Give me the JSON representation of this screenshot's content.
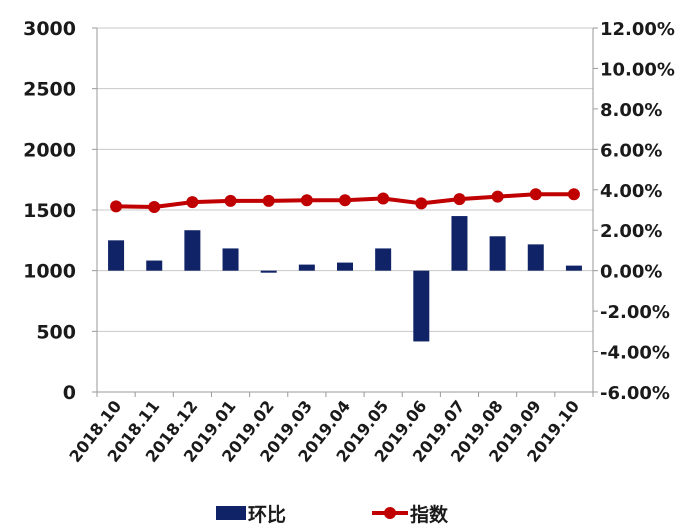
{
  "chart_data": {
    "type": "bar",
    "categories": [
      "2018.10",
      "2018.11",
      "2018.12",
      "2019.01",
      "2019.02",
      "2019.03",
      "2019.04",
      "2019.05",
      "2019.06",
      "2019.07",
      "2019.08",
      "2019.09",
      "2019.10"
    ],
    "series": [
      {
        "name": "环比",
        "type": "bar",
        "axis": "right",
        "unit": "%",
        "color": "#0f2366",
        "values": [
          1.5,
          0.5,
          2.0,
          1.1,
          -0.1,
          0.3,
          0.4,
          1.1,
          -3.5,
          2.7,
          1.7,
          1.3,
          0.25
        ]
      },
      {
        "name": "指数",
        "type": "line",
        "axis": "left",
        "color": "#c00000",
        "values": [
          1530,
          1525,
          1565,
          1575,
          1575,
          1580,
          1580,
          1595,
          1555,
          1590,
          1610,
          1630,
          1630
        ]
      }
    ],
    "left_axis": {
      "ylim": [
        0,
        3000
      ],
      "ticks": [
        "0",
        "500",
        "1000",
        "1500",
        "2000",
        "2500",
        "3000"
      ],
      "tick_values": [
        0,
        500,
        1000,
        1500,
        2000,
        2500,
        3000
      ]
    },
    "right_axis": {
      "ylim": [
        -6,
        12
      ],
      "ticks": [
        "-6.00%",
        "-4.00%",
        "-2.00%",
        "0.00%",
        "2.00%",
        "4.00%",
        "6.00%",
        "8.00%",
        "10.00%",
        "12.00%"
      ],
      "tick_values": [
        -6,
        -4,
        -2,
        0,
        2,
        4,
        6,
        8,
        10,
        12
      ]
    },
    "grid": true,
    "legend": "bottom",
    "title": "",
    "xlabel": "",
    "ylabel": ""
  }
}
